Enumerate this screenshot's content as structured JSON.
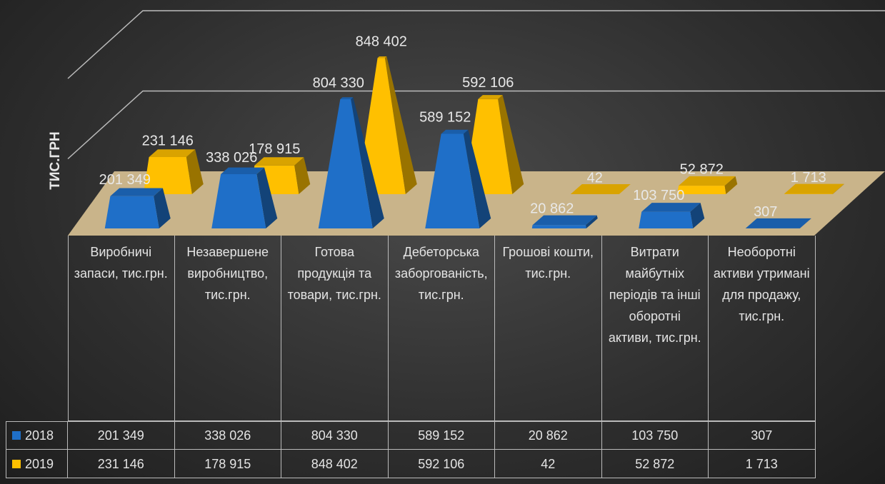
{
  "chart_data": {
    "type": "pyramid3d",
    "y_label": "ТИС.ГРН",
    "categories": [
      "Виробничі запаси, тис.грн.",
      "Незавершене виробництво, тис.грн.",
      "Готова продукція та товари, тис.грн.",
      "Дебеторська заборгованість, тис.грн.",
      "Грошові кошти, тис.грн.",
      "Витрати майбутніх періодів та інші оборотні активи, тис.грн.",
      "Необоротні активи утримані для продажу, тис.грн."
    ],
    "series": [
      {
        "name": "2018",
        "color": "#1f6fc8",
        "values": [
          201349,
          338026,
          804330,
          589152,
          20862,
          103750,
          307
        ],
        "value_labels": [
          "201 349",
          "338 026",
          "804 330",
          "589 152",
          "20 862",
          "103 750",
          "307"
        ]
      },
      {
        "name": "2019",
        "color": "#ffc000",
        "values": [
          231146,
          178915,
          848402,
          592106,
          42,
          52872,
          1713
        ],
        "value_labels": [
          "231 146",
          "178 915",
          "848 402",
          "592 106",
          "42",
          "52 872",
          "1 713"
        ]
      }
    ],
    "ylim": [
      0,
      1000000
    ],
    "yticks": [
      500000,
      1000000
    ],
    "grid": true
  }
}
